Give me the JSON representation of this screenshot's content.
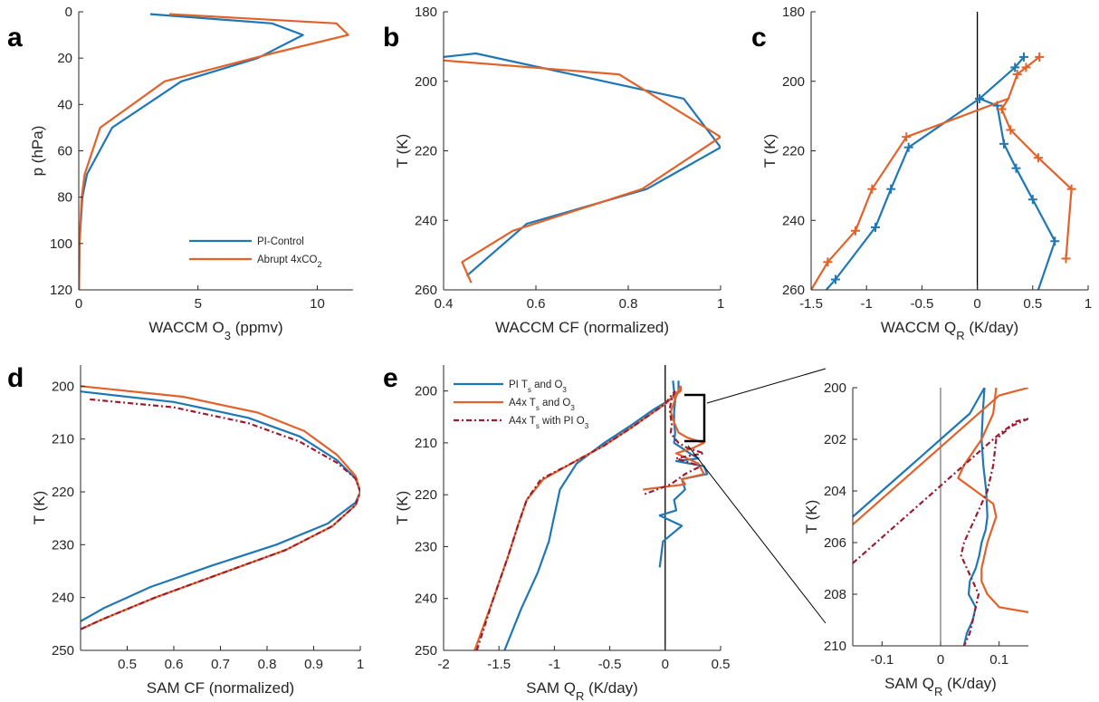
{
  "colors": {
    "blue": "#1f77b4",
    "orange": "#e1622b",
    "darkred": "#9b1c31",
    "axis": "#262626"
  },
  "chart_data": [
    {
      "id": "a",
      "panel_letter": "a",
      "type": "line",
      "xlabel": {
        "main": "WACCM O",
        "sub": "3",
        "tail": " (ppmv)"
      },
      "ylabel": "p (hPa)",
      "xlim": [
        0,
        11.5
      ],
      "ylim": [
        120,
        0
      ],
      "y_reversed": true,
      "xticks": [
        0,
        5,
        10
      ],
      "yticks": [
        0,
        20,
        40,
        60,
        80,
        100,
        120
      ],
      "legend": {
        "position": "bottom-right",
        "entries": [
          {
            "text": "PI-Control",
            "sub": "",
            "tail": ""
          },
          {
            "text": "Abrupt 4xCO",
            "sub": "2",
            "tail": ""
          }
        ]
      },
      "series": [
        {
          "name": "PI-Control",
          "color": "blue",
          "dash": "",
          "x": [
            3.0,
            8.1,
            9.4,
            7.5,
            4.3,
            1.4,
            0.35,
            0.15,
            0.03,
            0.01
          ],
          "y": [
            1,
            5,
            10,
            20,
            30,
            50,
            70,
            80,
            100,
            120
          ]
        },
        {
          "name": "Abrupt 4xCO2",
          "color": "orange",
          "dash": "",
          "x": [
            3.8,
            10.8,
            11.3,
            8.1,
            3.6,
            0.9,
            0.25,
            0.12,
            0.03,
            0.01
          ],
          "y": [
            1,
            5,
            10,
            18,
            30,
            50,
            70,
            80,
            100,
            120
          ]
        }
      ]
    },
    {
      "id": "b",
      "panel_letter": "b",
      "type": "line",
      "xlabel": {
        "main": "WACCM CF (normalized)",
        "sub": "",
        "tail": ""
      },
      "ylabel": "T (K)",
      "xlim": [
        0.4,
        1.0
      ],
      "ylim": [
        180,
        260
      ],
      "y_reversed": true,
      "xticks": [
        0.4,
        0.6,
        0.8,
        1.0
      ],
      "xticklabels": [
        "0.4",
        "0.6",
        "0.8",
        "1"
      ],
      "yticks": [
        180,
        200,
        220,
        240,
        260
      ],
      "series": [
        {
          "name": "PI-Control",
          "color": "blue",
          "dash": "",
          "x": [
            0.4,
            0.47,
            0.92,
            1.0,
            0.84,
            0.58,
            0.45
          ],
          "y": [
            193,
            192,
            205,
            219,
            231,
            241,
            256
          ]
        },
        {
          "name": "Abrupt 4xCO2",
          "color": "orange",
          "dash": "",
          "x": [
            0.4,
            0.78,
            1.0,
            0.83,
            0.55,
            0.44,
            0.46
          ],
          "y": [
            194,
            198,
            216,
            231,
            243,
            252,
            258
          ]
        }
      ]
    },
    {
      "id": "c",
      "panel_letter": "c",
      "type": "line",
      "xlabel": {
        "main": "WACCM Q",
        "sub": "R",
        "tail": " (K/day)"
      },
      "ylabel": "T (K)",
      "xlim": [
        -1.5,
        1.0
      ],
      "ylim": [
        180,
        260
      ],
      "y_reversed": true,
      "xticks": [
        -1.5,
        -1,
        -0.5,
        0,
        0.5,
        1
      ],
      "xticklabels": [
        "-1.5",
        "-1",
        "-0.5",
        "0",
        "0.5",
        "1"
      ],
      "yticks": [
        180,
        200,
        220,
        240,
        260
      ],
      "zero_line": true,
      "series": [
        {
          "name": "PI-Control",
          "color": "blue",
          "dash": "",
          "markers": true,
          "x": [
            0.42,
            0.34,
            0.02,
            0.18,
            0.24,
            0.35,
            0.5,
            0.7,
            0.55
          ],
          "y": [
            193,
            196,
            205,
            207,
            218,
            225,
            234,
            246,
            260
          ],
          "marker_idx": [
            0,
            1,
            2,
            3,
            4,
            5,
            6,
            7
          ]
        },
        {
          "name": "PI-Control-lower",
          "color": "blue",
          "dash": "",
          "markers": true,
          "x": [
            0.02,
            -0.62,
            -0.78,
            -0.92,
            -1.28,
            -1.42
          ],
          "y": [
            205,
            219,
            231,
            242,
            257,
            262
          ],
          "marker_idx": [
            0,
            1,
            2,
            3,
            4
          ]
        },
        {
          "name": "Abrupt 4xCO2",
          "color": "orange",
          "dash": "",
          "markers": true,
          "x": [
            0.56,
            0.44,
            0.36,
            0.28,
            0.22,
            0.3,
            0.55,
            0.85,
            0.8
          ],
          "y": [
            193,
            196,
            198,
            205,
            208,
            214,
            222,
            231,
            251
          ],
          "marker_idx": [
            0,
            1,
            2,
            4,
            5,
            6,
            7,
            8
          ]
        },
        {
          "name": "Abrupt 4xCO2-lower",
          "color": "orange",
          "dash": "",
          "markers": true,
          "x": [
            0.28,
            -0.64,
            -0.95,
            -1.1,
            -1.35,
            -1.5
          ],
          "y": [
            205,
            216,
            231,
            243,
            252,
            260
          ],
          "marker_idx": [
            1,
            2,
            3,
            4
          ]
        }
      ]
    },
    {
      "id": "d",
      "panel_letter": "d",
      "type": "line",
      "xlabel": {
        "main": "SAM CF (normalized)",
        "sub": "",
        "tail": ""
      },
      "ylabel": "T (K)",
      "xlim": [
        0.4,
        1.0
      ],
      "ylim": [
        196,
        250
      ],
      "y_reversed": true,
      "xticks": [
        0.5,
        0.6,
        0.7,
        0.8,
        0.9,
        1.0
      ],
      "xticklabels": [
        "0.5",
        "0.6",
        "0.7",
        "0.8",
        "0.9",
        "1"
      ],
      "yticks": [
        200,
        210,
        220,
        230,
        240,
        250
      ],
      "series": [
        {
          "name": "PI",
          "color": "blue",
          "dash": "",
          "x": [
            0.4,
            0.6,
            0.76,
            0.87,
            0.95,
            0.99,
            1.0,
            0.99,
            0.93,
            0.82,
            0.68,
            0.55,
            0.45,
            0.4
          ],
          "y": [
            201,
            203,
            206,
            209.5,
            214,
            217.5,
            220,
            222,
            226,
            230,
            234,
            238,
            242,
            244.5
          ]
        },
        {
          "name": "A4x",
          "color": "orange",
          "dash": "",
          "x": [
            0.4,
            0.62,
            0.78,
            0.88,
            0.95,
            0.99,
            1.0,
            0.99,
            0.94,
            0.84,
            0.7,
            0.56,
            0.45,
            0.4
          ],
          "y": [
            200,
            202,
            205,
            208.5,
            213,
            217,
            220,
            222.5,
            226.5,
            231,
            235.5,
            240,
            244,
            246
          ]
        },
        {
          "name": "A4x with PI O3",
          "color": "darkred",
          "dash": "6,3,2,3",
          "x": [
            0.42,
            0.6,
            0.76,
            0.87,
            0.95,
            0.99,
            1.0,
            0.99,
            0.94,
            0.84,
            0.7,
            0.56,
            0.45,
            0.4
          ],
          "y": [
            202.5,
            204,
            207,
            210.5,
            214.5,
            217.5,
            220,
            222.5,
            226.5,
            231,
            235.5,
            240,
            244,
            246
          ]
        }
      ]
    },
    {
      "id": "e",
      "panel_letter": "e",
      "type": "line",
      "xlabel": {
        "main": "SAM Q",
        "sub": "R",
        "tail": " (K/day)"
      },
      "ylabel": "T (K)",
      "xlim": [
        -2.0,
        0.5
      ],
      "ylim": [
        195,
        250
      ],
      "y_reversed": true,
      "xticks": [
        -2,
        -1.5,
        -1,
        -0.5,
        0,
        0.5
      ],
      "xticklabels": [
        "-2",
        "-1.5",
        "-1",
        "-0.5",
        "0",
        "0.5"
      ],
      "yticks": [
        200,
        210,
        220,
        230,
        240,
        250
      ],
      "zero_line": true,
      "legend": {
        "position": "top-left",
        "entries": [
          {
            "text": "PI T",
            "sub": "s",
            "tail": " and O",
            "sub2": "3"
          },
          {
            "text": "A4x T",
            "sub": "s",
            "tail": " and O",
            "sub2": "3"
          },
          {
            "text": "A4x T",
            "sub": "s",
            "tail": " with PI O",
            "sub2": "3"
          }
        ]
      },
      "series": [
        {
          "name": "PI Ts and O3",
          "color": "blue",
          "dash": "",
          "x": [
            -1.45,
            -1.3,
            -1.15,
            -1.05,
            -1.0,
            -0.95,
            -0.8,
            -0.55,
            -0.3,
            -0.1,
            0.02,
            0.08,
            0.12,
            0.12
          ],
          "y": [
            250,
            242,
            235,
            229,
            224,
            219,
            214,
            210,
            206.5,
            203.5,
            202,
            201,
            200,
            198
          ]
        },
        {
          "name": "PI Ts and O3 (spiky)",
          "color": "blue",
          "dash": "",
          "x": [
            0.07,
            0.08,
            0.09,
            0.08,
            0.08,
            0.09,
            0.08,
            0.15,
            0.22,
            0.3,
            0.1,
            0.35,
            0.38,
            0.15,
            0.18,
            0.08,
            0.1,
            -0.05,
            0.15,
            -0.02,
            -0.05
          ],
          "y": [
            198,
            200,
            202,
            204,
            206,
            208,
            210,
            211,
            212,
            213,
            213.5,
            214.5,
            216,
            217,
            219,
            221,
            223,
            224,
            226,
            229,
            234
          ]
        },
        {
          "name": "A4x Ts and O3",
          "color": "orange",
          "dash": "",
          "x": [
            -1.72,
            -1.55,
            -1.42,
            -1.33,
            -1.25,
            -1.1,
            -0.85,
            -0.55,
            -0.3,
            -0.1,
            0.0,
            0.08,
            0.14,
            0.14
          ],
          "y": [
            250,
            240,
            232,
            226,
            221,
            217,
            214,
            210.5,
            207,
            204,
            202.5,
            201,
            200,
            199
          ]
        },
        {
          "name": "A4x Ts and O3 (spiky)",
          "color": "orange",
          "dash": "",
          "x": [
            0.14,
            0.1,
            0.05,
            0.08,
            0.12,
            0.2,
            0.35,
            0.25,
            0.1,
            0.3,
            0.35,
            0.15,
            0.18,
            -0.2
          ],
          "y": [
            199,
            201,
            204,
            206,
            208,
            209,
            210,
            211,
            212,
            214,
            216,
            217,
            218,
            219
          ]
        },
        {
          "name": "A4x Ts with PI O3",
          "color": "darkred",
          "dash": "6,3,2,3",
          "x": [
            -1.7,
            -1.55,
            -1.42,
            -1.33,
            -1.25,
            -1.12,
            -0.85,
            -0.55,
            -0.3,
            -0.1,
            0.0,
            0.05,
            0.09
          ],
          "y": [
            250,
            240,
            232,
            226,
            221,
            217,
            214,
            210.5,
            207,
            204,
            202.5,
            201,
            200
          ]
        },
        {
          "name": "A4x Ts with PI O3 (spiky)",
          "color": "darkred",
          "dash": "6,3,2,3",
          "x": [
            0.09,
            0.06,
            0.04,
            0.05,
            0.06,
            0.05,
            0.08,
            0.12,
            0.2,
            0.35,
            0.22,
            0.1,
            0.32,
            0.18,
            0.05,
            -0.2
          ],
          "y": [
            200,
            201.5,
            203.5,
            205,
            206.5,
            208,
            209,
            210,
            211,
            212,
            212.5,
            213,
            214.5,
            216,
            218,
            220
          ]
        }
      ]
    },
    {
      "id": "inset",
      "panel_letter": "",
      "type": "line",
      "xlabel": {
        "main": "SAM Q",
        "sub": "R",
        "tail": " (K/day)"
      },
      "ylabel": "T (K)",
      "xlim": [
        -0.15,
        0.15
      ],
      "ylim": [
        200,
        210
      ],
      "y_reversed": true,
      "xticks": [
        -0.1,
        0,
        0.1
      ],
      "xticklabels": [
        "-0.1",
        "0",
        "0.1"
      ],
      "yticks": [
        200,
        202,
        204,
        206,
        208,
        210
      ],
      "zero_line": true,
      "series": [
        {
          "name": "PI Ts and O3",
          "color": "blue",
          "dash": "",
          "x": [
            -0.15,
            -0.1,
            -0.05,
            0.0,
            0.05,
            0.075
          ],
          "y": [
            205,
            204,
            203,
            202,
            201,
            200
          ]
        },
        {
          "name": "PI Ts and O3 (spiky)",
          "color": "blue",
          "dash": "",
          "x": [
            0.075,
            0.072,
            0.07,
            0.073,
            0.078,
            0.08,
            0.077,
            0.07,
            0.066,
            0.06,
            0.05,
            0.048,
            0.06,
            0.055,
            0.045,
            0.04
          ],
          "y": [
            200,
            201,
            202,
            203,
            204,
            205,
            205.5,
            206,
            206.5,
            207,
            207.5,
            208,
            208.5,
            209,
            209.5,
            210
          ]
        },
        {
          "name": "A4x Ts and O3",
          "color": "orange",
          "dash": "",
          "x": [
            -0.15,
            -0.1,
            -0.05,
            0.0,
            0.05,
            0.1,
            0.15
          ],
          "y": [
            205.3,
            204.3,
            203.3,
            202.3,
            201.3,
            200.3,
            200
          ]
        },
        {
          "name": "A4x Ts and O3 (spiky)",
          "color": "orange",
          "dash": "",
          "x": [
            0.095,
            0.09,
            0.07,
            0.04,
            0.03,
            0.06,
            0.09,
            0.095,
            0.08,
            0.07,
            0.07,
            0.08,
            0.1,
            0.15
          ],
          "y": [
            200,
            201,
            202,
            203,
            203.5,
            204,
            204.5,
            205,
            206,
            207,
            207.5,
            208,
            208.5,
            208.7
          ]
        },
        {
          "name": "A4x Ts with PI O3",
          "color": "darkred",
          "dash": "6,3,2,3",
          "x": [
            -0.15,
            -0.1,
            -0.05,
            0.0,
            0.05,
            0.1,
            0.13,
            0.15
          ],
          "y": [
            206.8,
            205.8,
            204.8,
            203.8,
            202.8,
            201.8,
            201.3,
            201.2
          ]
        },
        {
          "name": "A4x Ts with PI O3 (spiky)",
          "color": "darkred",
          "dash": "6,3,2,3",
          "x": [
            0.15,
            0.12,
            0.095,
            0.09,
            0.08,
            0.06,
            0.04,
            0.035,
            0.045,
            0.055,
            0.065,
            0.06,
            0.055,
            0.05,
            0.04
          ],
          "y": [
            201.2,
            201.5,
            202,
            203,
            204,
            205,
            206,
            206.5,
            207,
            207.5,
            208,
            208.5,
            209,
            209.5,
            210
          ]
        }
      ]
    }
  ]
}
